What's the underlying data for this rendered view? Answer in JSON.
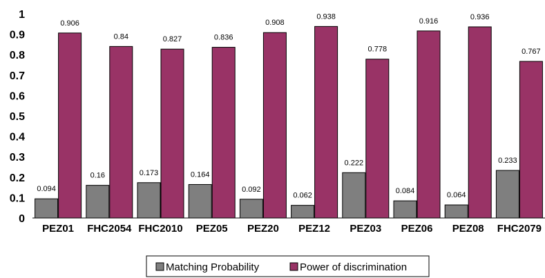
{
  "chart_data": {
    "type": "bar",
    "title": "",
    "xlabel": "",
    "ylabel": "",
    "ylim": [
      0,
      1
    ],
    "yticks": [
      "0",
      "0.1",
      "0.2",
      "0.3",
      "0.4",
      "0.5",
      "0.6",
      "0.7",
      "0.8",
      "0.9",
      "1"
    ],
    "categories": [
      "PEZ01",
      "FHC2054",
      "FHC2010",
      "PEZ05",
      "PEZ20",
      "PEZ12",
      "PEZ03",
      "PEZ06",
      "PEZ08",
      "FHC2079"
    ],
    "series": [
      {
        "name": "Matching Probability",
        "color": "#7f7f7f",
        "values": [
          0.094,
          0.16,
          0.173,
          0.164,
          0.092,
          0.062,
          0.222,
          0.084,
          0.064,
          0.233
        ],
        "labels": [
          "0.094",
          "0.16",
          "0.173",
          "0.164",
          "0.092",
          "0.062",
          "0.222",
          "0.084",
          "0.064",
          "0.233"
        ]
      },
      {
        "name": "Power of discrimination",
        "color": "#993366",
        "values": [
          0.906,
          0.84,
          0.827,
          0.836,
          0.908,
          0.938,
          0.778,
          0.916,
          0.936,
          0.767
        ],
        "labels": [
          "0.906",
          "0.84",
          "0.827",
          "0.836",
          "0.908",
          "0.938",
          "0.778",
          "0.916",
          "0.936",
          "0.767"
        ]
      }
    ],
    "grid": false,
    "legend_position": "bottom-center"
  }
}
